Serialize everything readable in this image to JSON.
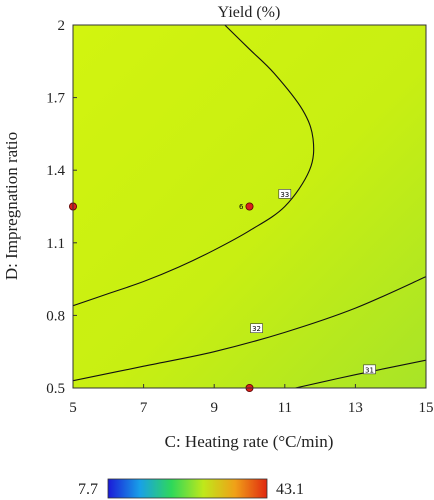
{
  "chart_data": {
    "type": "contour",
    "title": "Yield (%)",
    "xlabel": "C: Heating rate (°C/min)",
    "ylabel": "D: Impregnation ratio",
    "xlim": [
      5,
      15
    ],
    "ylim": [
      0.5,
      2.0
    ],
    "x_ticks": [
      "5",
      "7",
      "9",
      "11",
      "13",
      "15"
    ],
    "y_ticks": [
      "0.5",
      "0.8",
      "1.1",
      "1.4",
      "1.7",
      "2"
    ],
    "contours": [
      {
        "level": "33",
        "points": [
          [
            5.0,
            0.84
          ],
          [
            6.0,
            0.89
          ],
          [
            7.0,
            0.94
          ],
          [
            8.0,
            1.0
          ],
          [
            9.0,
            1.07
          ],
          [
            10.0,
            1.15
          ],
          [
            11.0,
            1.25
          ],
          [
            11.7,
            1.4
          ],
          [
            11.8,
            1.53
          ],
          [
            11.5,
            1.65
          ],
          [
            10.7,
            1.8
          ],
          [
            10.0,
            1.9
          ],
          [
            9.3,
            2.0
          ]
        ],
        "label_at": [
          11.0,
          1.3
        ]
      },
      {
        "level": "32",
        "points": [
          [
            5.0,
            0.53
          ],
          [
            7.0,
            0.59
          ],
          [
            9.0,
            0.65
          ],
          [
            11.0,
            0.73
          ],
          [
            13.0,
            0.83
          ],
          [
            15.0,
            0.96
          ]
        ],
        "label_at": [
          10.2,
          0.745
        ]
      },
      {
        "level": "31",
        "points": [
          [
            11.3,
            0.5
          ],
          [
            13.0,
            0.555
          ],
          [
            15.0,
            0.615
          ]
        ],
        "label_at": [
          13.4,
          0.575
        ]
      }
    ],
    "design_points": [
      {
        "x": 5,
        "y": 1.25,
        "label": ""
      },
      {
        "x": 10,
        "y": 1.25,
        "label": "6"
      },
      {
        "x": 10,
        "y": 0.5,
        "label": ""
      }
    ],
    "colorbar": {
      "min": "7.7",
      "max": "43.1",
      "stops": [
        "#1a1ad8",
        "#18a0e8",
        "#2ed85a",
        "#bfe81a",
        "#f0a018",
        "#e02810"
      ]
    },
    "colors": {
      "point_fill": "#d8201c",
      "point_stroke": "#5a0000"
    }
  }
}
